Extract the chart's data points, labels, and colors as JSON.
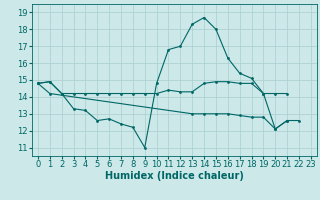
{
  "x": [
    0,
    1,
    2,
    3,
    4,
    5,
    6,
    7,
    8,
    9,
    10,
    11,
    12,
    13,
    14,
    15,
    16,
    17,
    18,
    19,
    20,
    21,
    22,
    23
  ],
  "line1": [
    14.8,
    14.9,
    14.2,
    14.2,
    14.2,
    14.2,
    14.2,
    14.2,
    14.2,
    14.2,
    14.2,
    14.4,
    14.3,
    14.3,
    14.8,
    14.9,
    14.9,
    14.8,
    14.8,
    14.2,
    14.2,
    14.2,
    null,
    null
  ],
  "line2": [
    14.8,
    14.9,
    14.2,
    13.3,
    13.2,
    12.6,
    12.7,
    12.4,
    12.2,
    11.0,
    14.8,
    16.8,
    17.0,
    18.3,
    18.7,
    18.0,
    16.3,
    15.4,
    15.1,
    14.2,
    12.1,
    12.6,
    12.6,
    null
  ],
  "line3": [
    14.8,
    14.2,
    null,
    null,
    null,
    null,
    null,
    null,
    null,
    null,
    null,
    null,
    null,
    13.0,
    13.0,
    13.0,
    13.0,
    12.9,
    12.8,
    12.8,
    12.1,
    12.6,
    null,
    null
  ],
  "bg_color": "#cce8e8",
  "line_color": "#006666",
  "grid_color": "#aacece",
  "xlabel": "Humidex (Indice chaleur)",
  "xlabel_fontsize": 7,
  "tick_fontsize": 6,
  "yticks": [
    11,
    12,
    13,
    14,
    15,
    16,
    17,
    18,
    19
  ],
  "xticks": [
    0,
    1,
    2,
    3,
    4,
    5,
    6,
    7,
    8,
    9,
    10,
    11,
    12,
    13,
    14,
    15,
    16,
    17,
    18,
    19,
    20,
    21,
    22,
    23
  ],
  "xlim": [
    -0.5,
    23.5
  ],
  "ylim": [
    10.5,
    19.5
  ]
}
